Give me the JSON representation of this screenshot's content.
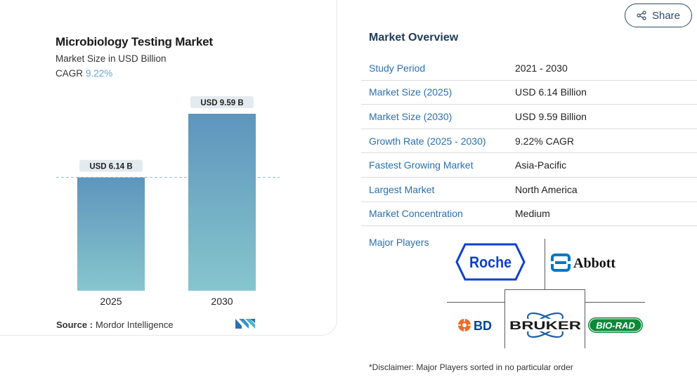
{
  "chart": {
    "title": "Microbiology Testing Market",
    "subtitle": "Market Size in USD Billion",
    "cagr_label": "CAGR",
    "cagr_value": "9.22%",
    "source_label": "Source :",
    "source_value": "Mordor Intelligence"
  },
  "chart_data": {
    "type": "bar",
    "categories": [
      "2025",
      "2030"
    ],
    "values": [
      6.14,
      9.59
    ],
    "data_labels": [
      "USD 6.14 B",
      "USD 9.59 B"
    ],
    "title": "Microbiology Testing Market",
    "subtitle": "Market Size in USD Billion",
    "ylabel": "",
    "xlabel": "",
    "reference_line": 6.14,
    "bar_color_top": "#5e95bd",
    "bar_color_bottom": "#86c6cd"
  },
  "share": {
    "label": "Share",
    "icon": "share-icon"
  },
  "overview": {
    "title": "Market Overview",
    "rows": [
      {
        "key": "Study Period",
        "value": "2021 - 2030"
      },
      {
        "key": "Market Size (2025)",
        "value": "USD 6.14 Billion"
      },
      {
        "key": "Market Size (2030)",
        "value": "USD 9.59 Billion"
      },
      {
        "key": "Growth Rate (2025 - 2030)",
        "value": "9.22% CAGR"
      },
      {
        "key": "Fastest Growing Market",
        "value": "Asia-Pacific"
      },
      {
        "key": "Largest Market",
        "value": "North America"
      },
      {
        "key": "Market Concentration",
        "value": "Medium"
      }
    ],
    "players_label": "Major Players",
    "players": [
      "Roche",
      "Abbott",
      "BD",
      "BRUKER",
      "BIO-RAD"
    ]
  },
  "disclaimer": "*Disclaimer: Major Players sorted in no particular order",
  "colors": {
    "key_text": "#2a6fb0",
    "heading": "#1f3b5a",
    "accent": "#6aa3c9"
  }
}
